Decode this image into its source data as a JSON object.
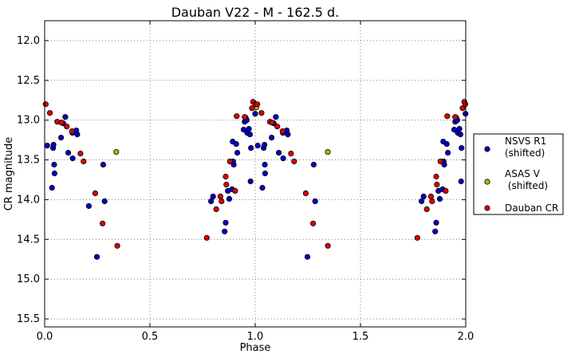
{
  "chart_data": {
    "type": "scatter",
    "title": "Dauban V22 - M - 162.5 d.",
    "xlabel": "Phase",
    "ylabel": "CR magnitude",
    "xlim": [
      0.0,
      2.0
    ],
    "ylim": [
      15.6,
      11.75
    ],
    "y_inverted": true,
    "grid": true,
    "legend_position": "outside-right",
    "xticks": [
      "0.0",
      "0.5",
      "1.0",
      "1.5",
      "2.0"
    ],
    "yticks": [
      "12.0",
      "12.5",
      "13.0",
      "13.5",
      "14.0",
      "14.5",
      "15.0",
      "15.5"
    ],
    "series": [
      {
        "name": "NSVS R1\n(shifted)",
        "color": "#0000cc",
        "points": [
          [
            0.012,
            13.32
          ],
          [
            0.035,
            13.85
          ],
          [
            0.04,
            13.35
          ],
          [
            0.042,
            13.31
          ],
          [
            0.045,
            13.56
          ],
          [
            0.047,
            13.67
          ],
          [
            0.078,
            13.22
          ],
          [
            0.088,
            13.04
          ],
          [
            0.098,
            12.96
          ],
          [
            0.112,
            13.41
          ],
          [
            0.132,
            13.16
          ],
          [
            0.133,
            13.48
          ],
          [
            0.15,
            13.13
          ],
          [
            0.155,
            13.18
          ],
          [
            0.21,
            14.08
          ],
          [
            0.248,
            14.72
          ],
          [
            0.278,
            13.56
          ],
          [
            0.285,
            14.02
          ],
          [
            0.79,
            14.02
          ],
          [
            0.8,
            13.96
          ],
          [
            0.855,
            14.4
          ],
          [
            0.86,
            14.29
          ],
          [
            0.87,
            13.89
          ],
          [
            0.877,
            13.99
          ],
          [
            0.89,
            13.87
          ],
          [
            0.893,
            13.27
          ],
          [
            0.895,
            13.52
          ],
          [
            0.898,
            13.56
          ],
          [
            0.91,
            13.3
          ],
          [
            0.915,
            13.41
          ],
          [
            0.945,
            13.12
          ],
          [
            0.95,
            13.02
          ],
          [
            0.955,
            12.97
          ],
          [
            0.96,
            13.0
          ],
          [
            0.962,
            13.16
          ],
          [
            0.97,
            13.11
          ],
          [
            0.975,
            13.18
          ],
          [
            0.978,
            13.77
          ],
          [
            0.98,
            13.35
          ],
          [
            1.0,
            12.92
          ],
          [
            1.012,
            13.32
          ],
          [
            1.034,
            13.85
          ],
          [
            1.04,
            13.35
          ],
          [
            1.044,
            13.31
          ],
          [
            1.046,
            13.56
          ],
          [
            1.047,
            13.67
          ],
          [
            1.078,
            13.22
          ],
          [
            1.088,
            13.04
          ],
          [
            1.098,
            12.96
          ],
          [
            1.112,
            13.41
          ],
          [
            1.132,
            13.16
          ],
          [
            1.133,
            13.48
          ],
          [
            1.15,
            13.13
          ],
          [
            1.155,
            13.18
          ],
          [
            1.248,
            14.72
          ],
          [
            1.278,
            13.56
          ],
          [
            1.285,
            14.02
          ],
          [
            1.79,
            14.02
          ],
          [
            1.8,
            13.96
          ],
          [
            1.855,
            14.4
          ],
          [
            1.86,
            14.29
          ],
          [
            1.87,
            13.89
          ],
          [
            1.877,
            13.99
          ],
          [
            1.89,
            13.87
          ],
          [
            1.893,
            13.27
          ],
          [
            1.895,
            13.52
          ],
          [
            1.898,
            13.56
          ],
          [
            1.91,
            13.3
          ],
          [
            1.915,
            13.41
          ],
          [
            1.945,
            13.12
          ],
          [
            1.95,
            13.02
          ],
          [
            1.955,
            12.97
          ],
          [
            1.96,
            13.0
          ],
          [
            1.962,
            13.16
          ],
          [
            1.97,
            13.11
          ],
          [
            1.975,
            13.18
          ],
          [
            1.978,
            13.77
          ],
          [
            1.98,
            13.35
          ],
          [
            1.999,
            12.92
          ]
        ]
      },
      {
        "name": "ASAS V\n (shifted)",
        "color": "#b5b500",
        "points": [
          [
            0.34,
            13.4
          ],
          [
            1.005,
            12.84
          ],
          [
            1.345,
            13.4
          ]
        ]
      },
      {
        "name": "Dauban CR",
        "color": "#dd0000",
        "points": [
          [
            0.005,
            12.8
          ],
          [
            0.025,
            12.91
          ],
          [
            0.06,
            13.02
          ],
          [
            0.08,
            13.03
          ],
          [
            0.105,
            13.08
          ],
          [
            0.13,
            13.14
          ],
          [
            0.17,
            13.42
          ],
          [
            0.185,
            13.52
          ],
          [
            0.24,
            13.92
          ],
          [
            0.275,
            14.3
          ],
          [
            0.345,
            14.58
          ],
          [
            0.77,
            14.48
          ],
          [
            0.815,
            14.12
          ],
          [
            0.835,
            13.96
          ],
          [
            0.84,
            14.02
          ],
          [
            0.86,
            13.71
          ],
          [
            0.863,
            13.81
          ],
          [
            0.88,
            13.52
          ],
          [
            0.905,
            13.89
          ],
          [
            0.912,
            12.95
          ],
          [
            0.95,
            12.96
          ],
          [
            0.985,
            12.85
          ],
          [
            0.99,
            12.77
          ],
          [
            1.0,
            12.8
          ],
          [
            1.01,
            12.8
          ],
          [
            1.03,
            12.91
          ],
          [
            1.07,
            13.02
          ],
          [
            1.08,
            13.03
          ],
          [
            1.105,
            13.08
          ],
          [
            1.13,
            13.14
          ],
          [
            1.17,
            13.42
          ],
          [
            1.185,
            13.52
          ],
          [
            1.24,
            13.92
          ],
          [
            1.275,
            14.3
          ],
          [
            1.345,
            14.58
          ],
          [
            1.77,
            14.48
          ],
          [
            1.815,
            14.12
          ],
          [
            1.835,
            13.96
          ],
          [
            1.84,
            14.02
          ],
          [
            1.86,
            13.71
          ],
          [
            1.863,
            13.81
          ],
          [
            1.88,
            13.52
          ],
          [
            1.905,
            13.89
          ],
          [
            1.912,
            12.95
          ],
          [
            1.95,
            12.96
          ],
          [
            1.985,
            12.85
          ],
          [
            1.993,
            12.77
          ],
          [
            1.998,
            12.8
          ]
        ]
      }
    ]
  }
}
